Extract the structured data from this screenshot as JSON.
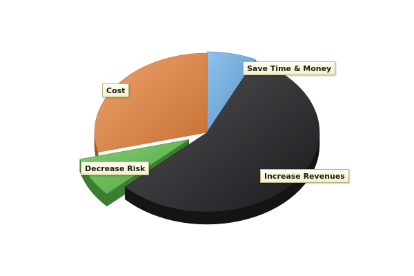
{
  "chart_data": {
    "type": "pie",
    "style": "3d-exploded",
    "legend": "none",
    "slices": [
      {
        "label": "Save Time & Money",
        "value": 7,
        "color": "#6aaee6"
      },
      {
        "label": "Increase Revenues",
        "value": 56,
        "color": "#1e1e22"
      },
      {
        "label": "Decrease Risk",
        "value": 8,
        "color": "#5cc04a"
      },
      {
        "label": "Cost",
        "value": 29,
        "color": "#e8843c"
      }
    ]
  }
}
